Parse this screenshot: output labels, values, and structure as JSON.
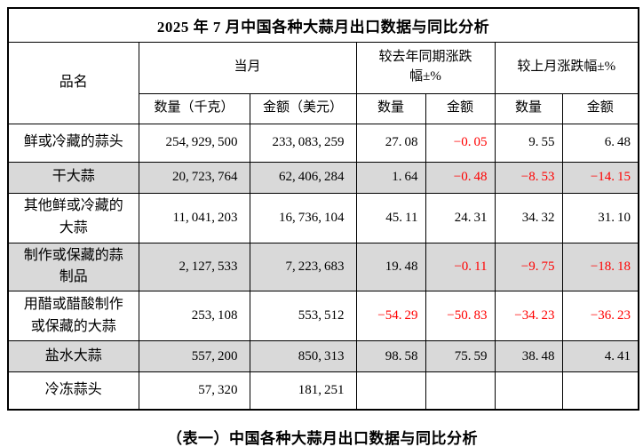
{
  "title": "2025 年 7 月中国各种大蒜月出口数据与同比分析",
  "caption": "（表一）中国各种大蒜月出口数据与同比分析",
  "colors": {
    "text": "#000000",
    "negative": "#ff0000",
    "shaded_row": "#d9d9d9",
    "border": "#000000",
    "background": "#ffffff"
  },
  "table": {
    "header": {
      "product": "品名",
      "groups": [
        {
          "label": "当月",
          "children": [
            "数量（千克）",
            "金额（美元）"
          ]
        },
        {
          "label": "较去年同期涨跌幅±%",
          "children": [
            "数量",
            "金额"
          ]
        },
        {
          "label": "较上月涨跌幅±%",
          "children": [
            "数量",
            "金额"
          ]
        }
      ]
    },
    "rows": [
      {
        "name": "鲜或冷藏的蒜头",
        "shaded": false,
        "cols": [
          "254,929,500",
          "233,083,259",
          "27.08",
          "-0.05",
          "9.55",
          "6.48"
        ]
      },
      {
        "name": "干大蒜",
        "shaded": true,
        "cols": [
          "20,723,764",
          "62,406,284",
          "1.64",
          "-0.48",
          "-8.53",
          "-14.15"
        ]
      },
      {
        "name": "其他鲜或冷藏的大蒜",
        "shaded": false,
        "cols": [
          "11,041,203",
          "16,736,104",
          "45.11",
          "24.31",
          "34.32",
          "31.10"
        ]
      },
      {
        "name": "制作或保藏的蒜制品",
        "shaded": true,
        "cols": [
          "2,127,533",
          "7,223,683",
          "19.48",
          "-0.11",
          "-9.75",
          "-18.18"
        ]
      },
      {
        "name": "用醋或醋酸制作或保藏的大蒜",
        "shaded": false,
        "cols": [
          "253,108",
          "553,512",
          "-54.29",
          "-50.83",
          "-34.23",
          "-36.23"
        ]
      },
      {
        "name": "盐水大蒜",
        "shaded": true,
        "cols": [
          "557,200",
          "850,313",
          "98.58",
          "75.59",
          "38.48",
          "4.41"
        ]
      },
      {
        "name": "冷冻蒜头",
        "shaded": false,
        "cols": [
          "57,320",
          "181,251",
          "",
          "",
          "",
          ""
        ]
      }
    ]
  }
}
